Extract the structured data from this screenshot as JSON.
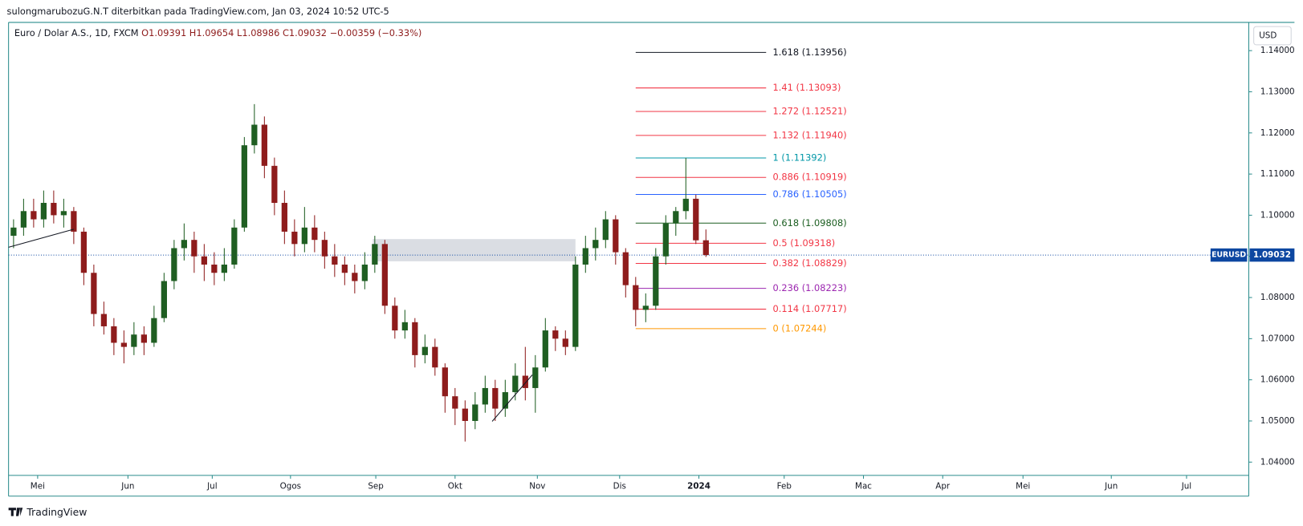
{
  "chart_data": {
    "type": "candlestick",
    "header": "sulongmarubozuG.N.T diterbitkan pada TradingView.com, Jan 03, 2024 10:52 UTC-5",
    "symbol_line": "Euro / Dolar A.S., 1D, FXCM",
    "ohlc": "O1.09391 H1.09654 L1.08986 C1.09032 −0.00359 (−0.33%)",
    "currency": "USD",
    "footer": "TradingView",
    "up_color": "#1f5e22",
    "down_color": "#8e1c1c",
    "ylim": [
      1.03677,
      1.14686
    ],
    "yticks": [
      {
        "value": 1.04,
        "label": "1.04000"
      },
      {
        "value": 1.05,
        "label": "1.05000"
      },
      {
        "value": 1.06,
        "label": "1.06000"
      },
      {
        "value": 1.07,
        "label": "1.07000"
      },
      {
        "value": 1.08,
        "label": "1.08000"
      },
      {
        "value": 1.09,
        "label": "1.09000"
      },
      {
        "value": 1.1,
        "label": "1.10000"
      },
      {
        "value": 1.11,
        "label": "1.11000"
      },
      {
        "value": 1.12,
        "label": "1.12000"
      },
      {
        "value": 1.13,
        "label": "1.13000"
      },
      {
        "value": 1.14,
        "label": "1.14000"
      }
    ],
    "xlim": [
      -0.5,
      123.1
    ],
    "xticks": [
      {
        "value": 2.4,
        "label": "Mei"
      },
      {
        "value": 11.4,
        "label": "Jun"
      },
      {
        "value": 19.8,
        "label": "Jul"
      },
      {
        "value": 27.6,
        "label": "Ogos"
      },
      {
        "value": 36.1,
        "label": "Sep"
      },
      {
        "value": 44.0,
        "label": "Okt"
      },
      {
        "value": 52.2,
        "label": "Nov"
      },
      {
        "value": 60.4,
        "label": "Dis"
      },
      {
        "value": 68.3,
        "label": "2024"
      },
      {
        "value": 76.8,
        "label": "Feb"
      },
      {
        "value": 84.7,
        "label": "Mac"
      },
      {
        "value": 92.6,
        "label": "Apr"
      },
      {
        "value": 100.6,
        "label": "Mei"
      },
      {
        "value": 109.4,
        "label": "Jun"
      },
      {
        "value": 116.9,
        "label": "Jul"
      }
    ],
    "candles": [
      [
        1.095,
        1.099,
        1.092,
        1.097
      ],
      [
        1.097,
        1.104,
        1.095,
        1.101
      ],
      [
        1.101,
        1.104,
        1.097,
        1.099
      ],
      [
        1.099,
        1.106,
        1.097,
        1.103
      ],
      [
        1.103,
        1.106,
        1.098,
        1.1
      ],
      [
        1.1,
        1.104,
        1.097,
        1.101
      ],
      [
        1.101,
        1.102,
        1.093,
        1.096
      ],
      [
        1.096,
        1.097,
        1.083,
        1.086
      ],
      [
        1.086,
        1.088,
        1.073,
        1.076
      ],
      [
        1.076,
        1.079,
        1.071,
        1.073
      ],
      [
        1.073,
        1.075,
        1.066,
        1.069
      ],
      [
        1.069,
        1.072,
        1.064,
        1.068
      ],
      [
        1.068,
        1.074,
        1.066,
        1.071
      ],
      [
        1.071,
        1.073,
        1.066,
        1.069
      ],
      [
        1.069,
        1.078,
        1.068,
        1.075
      ],
      [
        1.075,
        1.086,
        1.074,
        1.084
      ],
      [
        1.084,
        1.094,
        1.082,
        1.092
      ],
      [
        1.092,
        1.098,
        1.089,
        1.094
      ],
      [
        1.094,
        1.096,
        1.086,
        1.09
      ],
      [
        1.09,
        1.093,
        1.084,
        1.088
      ],
      [
        1.088,
        1.091,
        1.083,
        1.086
      ],
      [
        1.086,
        1.092,
        1.084,
        1.088
      ],
      [
        1.088,
        1.099,
        1.087,
        1.097
      ],
      [
        1.097,
        1.119,
        1.096,
        1.117
      ],
      [
        1.117,
        1.127,
        1.115,
        1.122
      ],
      [
        1.122,
        1.124,
        1.109,
        1.112
      ],
      [
        1.112,
        1.114,
        1.1,
        1.103
      ],
      [
        1.103,
        1.106,
        1.093,
        1.096
      ],
      [
        1.096,
        1.099,
        1.09,
        1.093
      ],
      [
        1.093,
        1.102,
        1.091,
        1.097
      ],
      [
        1.097,
        1.1,
        1.091,
        1.094
      ],
      [
        1.094,
        1.096,
        1.087,
        1.09
      ],
      [
        1.09,
        1.093,
        1.085,
        1.088
      ],
      [
        1.088,
        1.09,
        1.083,
        1.086
      ],
      [
        1.086,
        1.088,
        1.081,
        1.084
      ],
      [
        1.084,
        1.091,
        1.082,
        1.088
      ],
      [
        1.088,
        1.095,
        1.086,
        1.093
      ],
      [
        1.093,
        1.094,
        1.076,
        1.078
      ],
      [
        1.078,
        1.08,
        1.07,
        1.072
      ],
      [
        1.072,
        1.077,
        1.07,
        1.074
      ],
      [
        1.074,
        1.075,
        1.063,
        1.066
      ],
      [
        1.066,
        1.071,
        1.064,
        1.068
      ],
      [
        1.068,
        1.07,
        1.061,
        1.063
      ],
      [
        1.063,
        1.064,
        1.052,
        1.056
      ],
      [
        1.056,
        1.058,
        1.049,
        1.053
      ],
      [
        1.053,
        1.055,
        1.045,
        1.05
      ],
      [
        1.05,
        1.057,
        1.048,
        1.054
      ],
      [
        1.054,
        1.061,
        1.052,
        1.058
      ],
      [
        1.058,
        1.06,
        1.05,
        1.053
      ],
      [
        1.053,
        1.06,
        1.051,
        1.057
      ],
      [
        1.057,
        1.064,
        1.055,
        1.061
      ],
      [
        1.061,
        1.068,
        1.055,
        1.058
      ],
      [
        1.058,
        1.066,
        1.052,
        1.063
      ],
      [
        1.063,
        1.075,
        1.062,
        1.072
      ],
      [
        1.072,
        1.073,
        1.067,
        1.07
      ],
      [
        1.07,
        1.072,
        1.066,
        1.068
      ],
      [
        1.068,
        1.09,
        1.067,
        1.088
      ],
      [
        1.088,
        1.095,
        1.086,
        1.092
      ],
      [
        1.092,
        1.097,
        1.089,
        1.094
      ],
      [
        1.094,
        1.101,
        1.092,
        1.099
      ],
      [
        1.099,
        1.1,
        1.088,
        1.091
      ],
      [
        1.091,
        1.092,
        1.08,
        1.083
      ],
      [
        1.083,
        1.085,
        1.073,
        1.077
      ],
      [
        1.077,
        1.081,
        1.074,
        1.078
      ],
      [
        1.078,
        1.092,
        1.077,
        1.09
      ],
      [
        1.09,
        1.1,
        1.088,
        1.098
      ],
      [
        1.098,
        1.102,
        1.095,
        1.101
      ],
      [
        1.101,
        1.1139,
        1.099,
        1.104
      ],
      [
        1.104,
        1.105,
        1.093,
        1.0939
      ],
      [
        1.09391,
        1.09654,
        1.08986,
        1.09032
      ]
    ],
    "fib_levels": [
      {
        "text": "1.618 (1.13956)",
        "value": 1.13956,
        "color": "#131722"
      },
      {
        "text": "1.41 (1.13093)",
        "value": 1.13093,
        "color": "#f23645"
      },
      {
        "text": "1.272 (1.12521)",
        "value": 1.12521,
        "color": "#f23645"
      },
      {
        "text": "1.132 (1.11940)",
        "value": 1.1194,
        "color": "#f23645"
      },
      {
        "text": "1 (1.11392)",
        "value": 1.11392,
        "color": "#0097a7"
      },
      {
        "text": "0.886 (1.10919)",
        "value": 1.10919,
        "color": "#f23645"
      },
      {
        "text": "0.786 (1.10505)",
        "value": 1.10505,
        "color": "#2962ff"
      },
      {
        "text": "0.618 (1.09808)",
        "value": 1.09808,
        "color": "#1b5e20"
      },
      {
        "text": "0.5 (1.09318)",
        "value": 1.09318,
        "color": "#f23645"
      },
      {
        "text": "0.382 (1.08829)",
        "value": 1.08829,
        "color": "#f23645"
      },
      {
        "text": "0.236 (1.08223)",
        "value": 1.08223,
        "color": "#9c27b0"
      },
      {
        "text": "0.114 (1.07717)",
        "value": 1.07717,
        "color": "#f23645"
      },
      {
        "text": "0 (1.07244)",
        "value": 1.07244,
        "color": "#ff9800"
      }
    ],
    "fib_x": [
      62.0,
      75.0
    ],
    "rectangle": {
      "x": [
        35.8,
        56.0
      ],
      "y": [
        1.0888,
        1.0942
      ],
      "color": "#d1d4dc"
    },
    "trendlines": [
      {
        "x": [
          -0.5,
          6.0
        ],
        "y": [
          1.0922,
          1.0966
        ]
      },
      {
        "x": [
          47.7,
          51.7
        ],
        "y": [
          1.0499,
          1.0612
        ]
      }
    ],
    "last_price": {
      "symbol": "EURUSD",
      "value": 1.09032,
      "color": "#0d47a1"
    }
  }
}
